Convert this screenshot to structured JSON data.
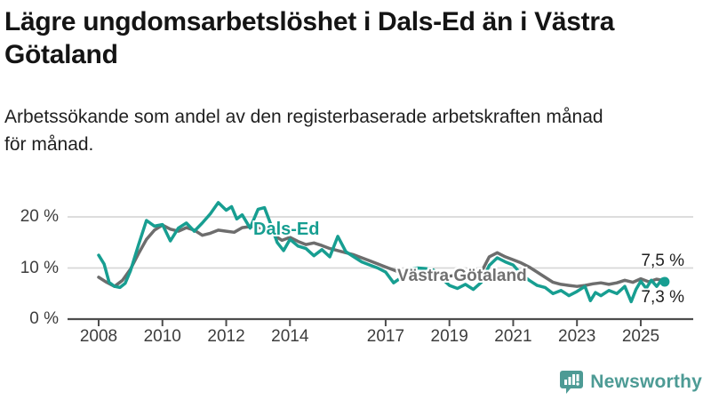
{
  "header": {
    "title": "Lägre ungdomsarbetslöshet i Dals-Ed än i Västra\nGötaland",
    "subtitle": "Arbetssökande som andel av den registerbaserade arbetskraften månad\nför månad."
  },
  "chart_data": {
    "type": "line",
    "title": "Lägre ungdomsarbetslöshet i Dals-Ed än i Västra Götaland",
    "xlabel": "",
    "ylabel": "",
    "unit": "%",
    "grid": "horizontal",
    "xlim": [
      2007.8,
      2025.95
    ],
    "ylim": [
      0,
      24
    ],
    "yticks": [
      {
        "value": 0,
        "label": "0 %"
      },
      {
        "value": 10,
        "label": "10 %"
      },
      {
        "value": 20,
        "label": "20 %"
      }
    ],
    "xticks": [
      {
        "value": 2008,
        "label": "2008"
      },
      {
        "value": 2010,
        "label": "2010"
      },
      {
        "value": 2012,
        "label": "2012"
      },
      {
        "value": 2014,
        "label": "2014"
      },
      {
        "value": 2017,
        "label": "2017"
      },
      {
        "value": 2019,
        "label": "2019"
      },
      {
        "value": 2021,
        "label": "2021"
      },
      {
        "value": 2023,
        "label": "2023"
      },
      {
        "value": 2025,
        "label": "2025"
      }
    ],
    "series": [
      {
        "name": "Västra Götaland",
        "color": "#6d6d6d",
        "end_value_label": "7,5 %",
        "end_dot": false,
        "points": [
          [
            2008.0,
            8.2
          ],
          [
            2008.25,
            7.2
          ],
          [
            2008.5,
            6.4
          ],
          [
            2008.75,
            7.6
          ],
          [
            2009.0,
            9.8
          ],
          [
            2009.25,
            12.8
          ],
          [
            2009.5,
            15.6
          ],
          [
            2009.75,
            17.4
          ],
          [
            2010.0,
            18.4
          ],
          [
            2010.25,
            17.6
          ],
          [
            2010.5,
            17.2
          ],
          [
            2010.75,
            17.9
          ],
          [
            2011.0,
            17.4
          ],
          [
            2011.25,
            16.4
          ],
          [
            2011.5,
            16.8
          ],
          [
            2011.75,
            17.4
          ],
          [
            2012.0,
            17.2
          ],
          [
            2012.25,
            17.0
          ],
          [
            2012.5,
            17.9
          ],
          [
            2012.75,
            18.1
          ],
          [
            2013.0,
            18.0
          ],
          [
            2013.25,
            17.4
          ],
          [
            2013.5,
            16.4
          ],
          [
            2013.75,
            15.4
          ],
          [
            2014.0,
            16.0
          ],
          [
            2014.25,
            15.2
          ],
          [
            2014.5,
            14.6
          ],
          [
            2014.75,
            14.9
          ],
          [
            2015.0,
            14.4
          ],
          [
            2015.25,
            13.8
          ],
          [
            2015.5,
            13.4
          ],
          [
            2015.75,
            13.0
          ],
          [
            2016.0,
            12.6
          ],
          [
            2016.25,
            12.0
          ],
          [
            2016.5,
            11.4
          ],
          [
            2016.75,
            10.8
          ],
          [
            2017.0,
            10.2
          ],
          [
            2017.25,
            9.6
          ],
          [
            2017.5,
            9.0
          ],
          [
            2017.75,
            9.2
          ],
          [
            2018.0,
            9.0
          ],
          [
            2018.25,
            8.8
          ],
          [
            2018.5,
            8.6
          ],
          [
            2018.75,
            8.6
          ],
          [
            2019.0,
            8.4
          ],
          [
            2019.25,
            8.6
          ],
          [
            2019.5,
            8.4
          ],
          [
            2019.75,
            8.6
          ],
          [
            2020.0,
            9.2
          ],
          [
            2020.25,
            12.2
          ],
          [
            2020.5,
            13.0
          ],
          [
            2020.75,
            12.2
          ],
          [
            2021.0,
            11.6
          ],
          [
            2021.25,
            11.0
          ],
          [
            2021.5,
            10.2
          ],
          [
            2021.75,
            9.2
          ],
          [
            2022.0,
            8.2
          ],
          [
            2022.25,
            7.2
          ],
          [
            2022.5,
            6.8
          ],
          [
            2022.75,
            6.6
          ],
          [
            2023.0,
            6.4
          ],
          [
            2023.25,
            6.6
          ],
          [
            2023.5,
            6.9
          ],
          [
            2023.75,
            7.1
          ],
          [
            2024.0,
            6.8
          ],
          [
            2024.25,
            7.1
          ],
          [
            2024.5,
            7.6
          ],
          [
            2024.75,
            7.2
          ],
          [
            2025.0,
            7.9
          ],
          [
            2025.25,
            7.3
          ],
          [
            2025.5,
            7.8
          ],
          [
            2025.75,
            7.5
          ]
        ]
      },
      {
        "name": "Dals-Ed",
        "color": "#179e91",
        "end_value_label": "7,3 %",
        "end_dot": true,
        "points": [
          [
            2008.0,
            12.5
          ],
          [
            2008.17,
            10.8
          ],
          [
            2008.33,
            7.2
          ],
          [
            2008.5,
            6.4
          ],
          [
            2008.67,
            6.2
          ],
          [
            2008.83,
            7.0
          ],
          [
            2009.0,
            9.5
          ],
          [
            2009.25,
            14.5
          ],
          [
            2009.5,
            19.3
          ],
          [
            2009.75,
            18.2
          ],
          [
            2010.0,
            18.5
          ],
          [
            2010.25,
            15.3
          ],
          [
            2010.5,
            17.8
          ],
          [
            2010.75,
            18.8
          ],
          [
            2011.0,
            17.2
          ],
          [
            2011.25,
            18.8
          ],
          [
            2011.5,
            20.6
          ],
          [
            2011.75,
            22.8
          ],
          [
            2012.0,
            21.3
          ],
          [
            2012.17,
            22.0
          ],
          [
            2012.33,
            19.6
          ],
          [
            2012.5,
            20.4
          ],
          [
            2012.75,
            17.8
          ],
          [
            2013.0,
            21.5
          ],
          [
            2013.2,
            21.8
          ],
          [
            2013.4,
            18.5
          ],
          [
            2013.6,
            15.0
          ],
          [
            2013.8,
            13.4
          ],
          [
            2014.0,
            15.6
          ],
          [
            2014.25,
            14.3
          ],
          [
            2014.5,
            13.8
          ],
          [
            2014.75,
            12.4
          ],
          [
            2015.0,
            13.6
          ],
          [
            2015.25,
            12.2
          ],
          [
            2015.5,
            16.2
          ],
          [
            2015.75,
            13.2
          ],
          [
            2016.0,
            12.2
          ],
          [
            2016.25,
            11.2
          ],
          [
            2016.5,
            10.6
          ],
          [
            2016.75,
            10.0
          ],
          [
            2017.0,
            9.2
          ],
          [
            2017.25,
            7.1
          ],
          [
            2017.5,
            8.2
          ],
          [
            2017.75,
            9.8
          ],
          [
            2018.0,
            10.0
          ],
          [
            2018.25,
            9.9
          ],
          [
            2018.5,
            9.6
          ],
          [
            2018.75,
            8.0
          ],
          [
            2019.0,
            6.6
          ],
          [
            2019.25,
            6.0
          ],
          [
            2019.5,
            6.8
          ],
          [
            2019.75,
            5.8
          ],
          [
            2020.0,
            7.2
          ],
          [
            2020.25,
            10.5
          ],
          [
            2020.5,
            12.0
          ],
          [
            2020.75,
            11.2
          ],
          [
            2021.0,
            10.6
          ],
          [
            2021.25,
            8.8
          ],
          [
            2021.5,
            7.6
          ],
          [
            2021.75,
            6.6
          ],
          [
            2022.0,
            6.2
          ],
          [
            2022.25,
            5.0
          ],
          [
            2022.5,
            5.6
          ],
          [
            2022.75,
            4.6
          ],
          [
            2023.0,
            5.4
          ],
          [
            2023.25,
            6.4
          ],
          [
            2023.42,
            3.6
          ],
          [
            2023.58,
            5.2
          ],
          [
            2023.75,
            4.6
          ],
          [
            2024.0,
            5.6
          ],
          [
            2024.25,
            5.0
          ],
          [
            2024.5,
            6.4
          ],
          [
            2024.7,
            3.4
          ],
          [
            2024.85,
            5.8
          ],
          [
            2025.0,
            7.4
          ],
          [
            2025.17,
            6.0
          ],
          [
            2025.33,
            7.6
          ],
          [
            2025.5,
            6.4
          ],
          [
            2025.67,
            7.8
          ],
          [
            2025.75,
            7.3
          ]
        ]
      }
    ],
    "colors": {
      "grid": "#d8d8d8",
      "axis": "#4d4d4d",
      "tick_label": "#3d3d3d"
    },
    "legend_position": "inline-labels"
  },
  "footer": {
    "brand": "Newsworthy",
    "brand_color": "#4d9b95",
    "icon": "newsworthy-logo-icon"
  }
}
